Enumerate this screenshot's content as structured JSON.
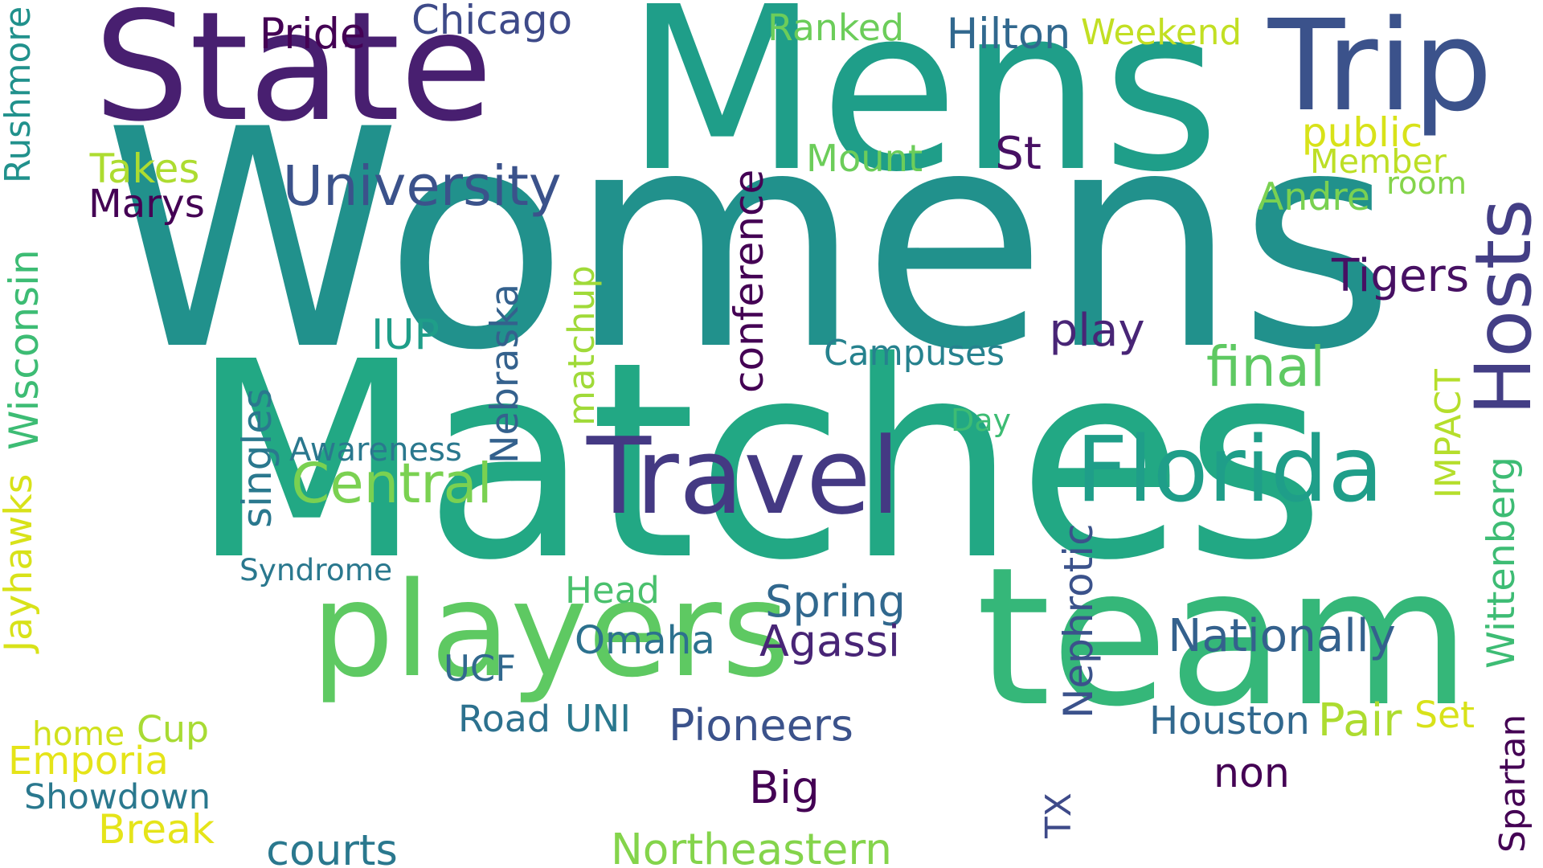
{
  "words": [
    {
      "text": "Womens",
      "color": "#21918c",
      "rotate": false
    },
    {
      "text": "Matches",
      "color": "#22a884",
      "rotate": false
    },
    {
      "text": "Mens",
      "color": "#1f9e89",
      "rotate": false
    },
    {
      "text": "team",
      "color": "#35b779",
      "rotate": false
    },
    {
      "text": "State",
      "color": "#481f70",
      "rotate": false
    },
    {
      "text": "players",
      "color": "#5ec962",
      "rotate": false
    },
    {
      "text": "Trip",
      "color": "#3b528b",
      "rotate": false
    },
    {
      "text": "Travel",
      "color": "#443983",
      "rotate": false
    },
    {
      "text": "Florida",
      "color": "#1f9e89",
      "rotate": false
    },
    {
      "text": "Hosts",
      "color": "#433e85",
      "rotate": true
    },
    {
      "text": "University",
      "color": "#3b528b",
      "rotate": false
    },
    {
      "text": "Central",
      "color": "#7ad151",
      "rotate": false
    },
    {
      "text": "final",
      "color": "#5ec962",
      "rotate": false
    },
    {
      "text": "Chicago",
      "color": "#3e4a89",
      "rotate": false
    },
    {
      "text": "Pride",
      "color": "#440154",
      "rotate": false
    },
    {
      "text": "Ranked",
      "color": "#6ccd5a",
      "rotate": false
    },
    {
      "text": "Hilton",
      "color": "#31688e",
      "rotate": false
    },
    {
      "text": "Weekend",
      "color": "#c2df23",
      "rotate": false
    },
    {
      "text": "Rushmore",
      "color": "#21918c",
      "rotate": true
    },
    {
      "text": "Takes",
      "color": "#addc30",
      "rotate": false
    },
    {
      "text": "Marys",
      "color": "#440154",
      "rotate": false
    },
    {
      "text": "Mount",
      "color": "#6ccd5a",
      "rotate": false
    },
    {
      "text": "St",
      "color": "#471063",
      "rotate": false
    },
    {
      "text": "public",
      "color": "#d8e219",
      "rotate": false
    },
    {
      "text": "Member",
      "color": "#bddf26",
      "rotate": false
    },
    {
      "text": "room",
      "color": "#84d44b",
      "rotate": false
    },
    {
      "text": "Andre",
      "color": "#7ad151",
      "rotate": false
    },
    {
      "text": "conference",
      "color": "#440154",
      "rotate": true
    },
    {
      "text": "Tigers",
      "color": "#471063",
      "rotate": false
    },
    {
      "text": "Wisconsin",
      "color": "#3dbc74",
      "rotate": true
    },
    {
      "text": "IUP",
      "color": "#1f9e89",
      "rotate": false
    },
    {
      "text": "Nebraska",
      "color": "#34618d",
      "rotate": true
    },
    {
      "text": "matchup",
      "color": "#a0da39",
      "rotate": true
    },
    {
      "text": "Campuses",
      "color": "#26828e",
      "rotate": false
    },
    {
      "text": "play",
      "color": "#482576",
      "rotate": false
    },
    {
      "text": "IMPACT",
      "color": "#b5de2b",
      "rotate": true
    },
    {
      "text": "Day",
      "color": "#3dbc74",
      "rotate": false
    },
    {
      "text": "Awareness",
      "color": "#2a788e",
      "rotate": false
    },
    {
      "text": "singles",
      "color": "#2a788e",
      "rotate": true
    },
    {
      "text": "Wittenberg",
      "color": "#3dbc74",
      "rotate": true
    },
    {
      "text": "Jayhawks",
      "color": "#d8e219",
      "rotate": true
    },
    {
      "text": "Syndrome",
      "color": "#2a788e",
      "rotate": false
    },
    {
      "text": "Head",
      "color": "#4ac16d",
      "rotate": false
    },
    {
      "text": "Spring",
      "color": "#31688e",
      "rotate": false
    },
    {
      "text": "Nephrotic",
      "color": "#3b528b",
      "rotate": true
    },
    {
      "text": "Omaha",
      "color": "#2c718e",
      "rotate": false
    },
    {
      "text": "Agassi",
      "color": "#482576",
      "rotate": false
    },
    {
      "text": "Nationally",
      "color": "#34618d",
      "rotate": false
    },
    {
      "text": "UCF",
      "color": "#31688e",
      "rotate": false
    },
    {
      "text": "Road",
      "color": "#2c718e",
      "rotate": false
    },
    {
      "text": "UNI",
      "color": "#2a788e",
      "rotate": false
    },
    {
      "text": "Pioneers",
      "color": "#3b528b",
      "rotate": false
    },
    {
      "text": "Houston",
      "color": "#31688e",
      "rotate": false
    },
    {
      "text": "Pair",
      "color": "#addc30",
      "rotate": false
    },
    {
      "text": "Set",
      "color": "#d8e219",
      "rotate": false
    },
    {
      "text": "home",
      "color": "#d0e11c",
      "rotate": false
    },
    {
      "text": "Cup",
      "color": "#a8db34",
      "rotate": false
    },
    {
      "text": "Emporia",
      "color": "#e5e419",
      "rotate": false
    },
    {
      "text": "Showdown",
      "color": "#2a788e",
      "rotate": false
    },
    {
      "text": "Break",
      "color": "#e5e419",
      "rotate": false
    },
    {
      "text": "courts",
      "color": "#2a788e",
      "rotate": false
    },
    {
      "text": "Big",
      "color": "#440154",
      "rotate": false
    },
    {
      "text": "non",
      "color": "#440154",
      "rotate": false
    },
    {
      "text": "TX",
      "color": "#3e4a89",
      "rotate": true
    },
    {
      "text": "Northeastern",
      "color": "#84d44b",
      "rotate": false
    },
    {
      "text": "Spartan",
      "color": "#440154",
      "rotate": true
    }
  ]
}
